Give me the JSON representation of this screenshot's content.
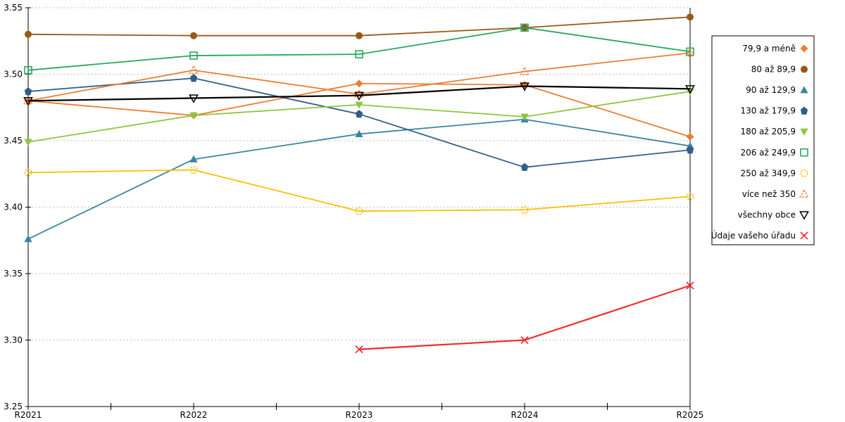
{
  "chart_data": {
    "type": "line",
    "title": "",
    "categories": [
      "R2021",
      "R2022",
      "R2023",
      "R2024",
      "R2025"
    ],
    "y_axis": {
      "min": 3.25,
      "max": 3.55,
      "tick_step": 0.05,
      "tick_labels": [
        "3.25",
        "3.30",
        "3.35",
        "3.40",
        "3.45",
        "3.50",
        "3.55"
      ]
    },
    "x_axis": {
      "tick_labels": [
        "R2021",
        "R2022",
        "R2023",
        "R2024",
        "R2025"
      ],
      "minor_ticks_between_years": true
    },
    "grid": {
      "horizontal_dotted": true,
      "color": "#BFBFBF"
    },
    "axis_color": "#000000",
    "legend": {
      "position": "right",
      "border_color": "#000000",
      "background": "#FFFFFF"
    },
    "series": [
      {
        "name": "79,9 a méně",
        "marker": "diamond",
        "color": "#ED7D31",
        "line_width": 1.8,
        "values": [
          3.48,
          3.469,
          3.493,
          3.492,
          3.453
        ]
      },
      {
        "name": "80 až 89,9",
        "marker": "circle",
        "color": "#9C5713",
        "line_width": 1.8,
        "values": [
          3.53,
          3.529,
          3.529,
          3.535,
          3.543
        ]
      },
      {
        "name": "90 až 129,9",
        "marker": "triangle",
        "color": "#3A86A0",
        "line_width": 1.8,
        "values": [
          3.376,
          3.436,
          3.455,
          3.466,
          3.446
        ]
      },
      {
        "name": "130 až 179,9",
        "marker": "pentagon",
        "color": "#305E8C",
        "line_width": 1.8,
        "values": [
          3.487,
          3.497,
          3.47,
          3.43,
          3.443
        ]
      },
      {
        "name": "180 až 205,9",
        "marker": "triangle-down",
        "color": "#8DC63F",
        "line_width": 1.8,
        "values": [
          3.449,
          3.469,
          3.477,
          3.468,
          3.487
        ]
      },
      {
        "name": "206 až 249,9",
        "marker": "square-open",
        "color": "#27A95F",
        "line_width": 1.8,
        "values": [
          3.503,
          3.514,
          3.515,
          3.535,
          3.517
        ]
      },
      {
        "name": "250 až 349,9",
        "marker": "circle-open",
        "color": "#FFC000",
        "line_width": 1.8,
        "values": [
          3.426,
          3.428,
          3.397,
          3.398,
          3.408
        ]
      },
      {
        "name": "více než 350",
        "marker": "triangle-open",
        "color": "#ED7D31",
        "line_width": 1.8,
        "values": [
          3.48,
          3.503,
          3.485,
          3.502,
          3.516
        ]
      },
      {
        "name": "všechny obce",
        "marker": "triangle-down-open",
        "color": "#000000",
        "line_width": 2.2,
        "values": [
          3.48,
          3.482,
          3.484,
          3.491,
          3.489
        ]
      },
      {
        "name": "Údaje vašeho úřadu",
        "marker": "x",
        "color": "#F42B2B",
        "line_width": 2.2,
        "values": [
          null,
          null,
          3.293,
          3.3,
          3.341
        ]
      }
    ]
  }
}
